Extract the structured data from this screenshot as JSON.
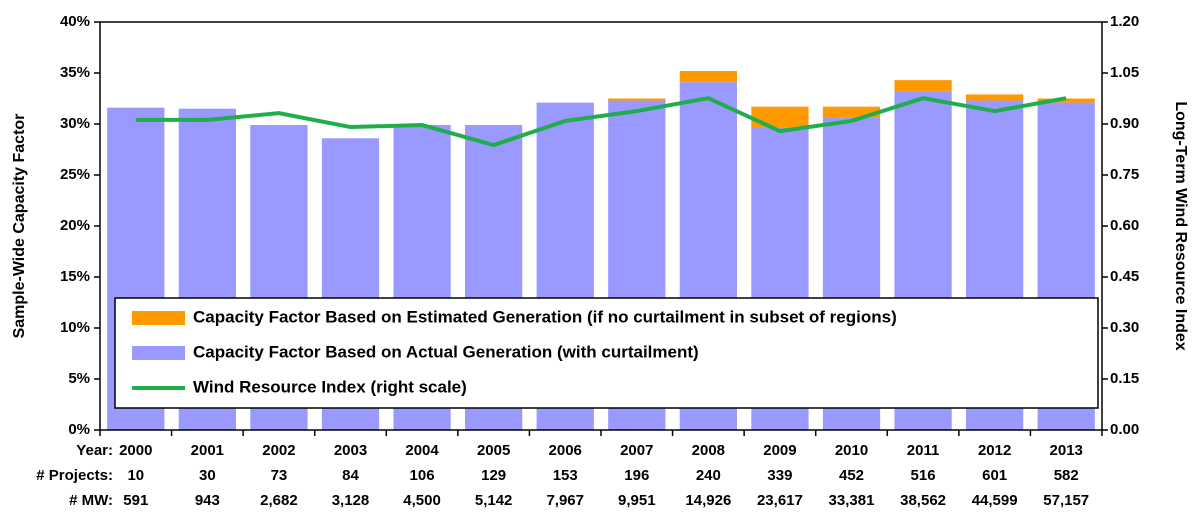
{
  "chart_data": {
    "type": "bar",
    "categories": [
      "2000",
      "2001",
      "2002",
      "2003",
      "2004",
      "2005",
      "2006",
      "2007",
      "2008",
      "2009",
      "2010",
      "2011",
      "2012",
      "2013"
    ],
    "series": [
      {
        "name": "Capacity Factor Based on Actual Generation (with curtailment)",
        "color": "#9999ff",
        "stack": true,
        "values": [
          31.6,
          31.5,
          29.9,
          28.6,
          29.9,
          29.9,
          32.1,
          32.3,
          34.1,
          29.7,
          30.6,
          33.2,
          32.3,
          32.1
        ]
      },
      {
        "name": "Capacity Factor Based on Estimated Generation (if no curtailment in subset of regions)",
        "color": "#ff9900",
        "stack": true,
        "values": [
          0,
          0,
          0,
          0,
          0,
          0,
          0,
          0.2,
          1.1,
          2.0,
          1.1,
          1.1,
          0.6,
          0.4
        ]
      },
      {
        "name": "Wind Resource Index (right scale)",
        "color": "#1fae4b",
        "type": "line",
        "axis": "y2",
        "values": [
          0.912,
          0.912,
          0.932,
          0.891,
          0.897,
          0.838,
          0.909,
          0.938,
          0.976,
          0.879,
          0.909,
          0.976,
          0.938,
          0.976
        ]
      }
    ],
    "legend_order": [
      1,
      0,
      2
    ],
    "ylabel": "Sample-Wide Capacity Factor",
    "y2label": "Long-Term Wind Resource Index",
    "ylim": [
      0,
      40
    ],
    "yticks": [
      {
        "value": 0,
        "label": "0%"
      },
      {
        "value": 5,
        "label": "5%"
      },
      {
        "value": 10,
        "label": "10%"
      },
      {
        "value": 15,
        "label": "15%"
      },
      {
        "value": 20,
        "label": "20%"
      },
      {
        "value": 25,
        "label": "25%"
      },
      {
        "value": 30,
        "label": "30%"
      },
      {
        "value": 35,
        "label": "35%"
      },
      {
        "value": 40,
        "label": "40%"
      }
    ],
    "y2lim": [
      0,
      1.2
    ],
    "y2ticks": [
      {
        "value": 0,
        "label": "0.00"
      },
      {
        "value": 0.15,
        "label": "0.15"
      },
      {
        "value": 0.3,
        "label": "0.30"
      },
      {
        "value": 0.45,
        "label": "0.45"
      },
      {
        "value": 0.6,
        "label": "0.60"
      },
      {
        "value": 0.75,
        "label": "0.75"
      },
      {
        "value": 0.9,
        "label": "0.90"
      },
      {
        "value": 1.05,
        "label": "1.05"
      },
      {
        "value": 1.2,
        "label": "1.20"
      }
    ],
    "table": [
      {
        "label": "Year:",
        "of": "categories"
      },
      {
        "label": "# Projects:",
        "values": [
          10,
          30,
          73,
          84,
          106,
          129,
          153,
          196,
          240,
          339,
          452,
          516,
          601,
          582
        ]
      },
      {
        "label": "# MW:",
        "values": [
          "591",
          "943",
          "2,682",
          "3,128",
          "4,500",
          "5,142",
          "7,967",
          "9,951",
          "14,926",
          "23,617",
          "33,381",
          "38,562",
          "44,599",
          "57,157"
        ]
      }
    ]
  }
}
